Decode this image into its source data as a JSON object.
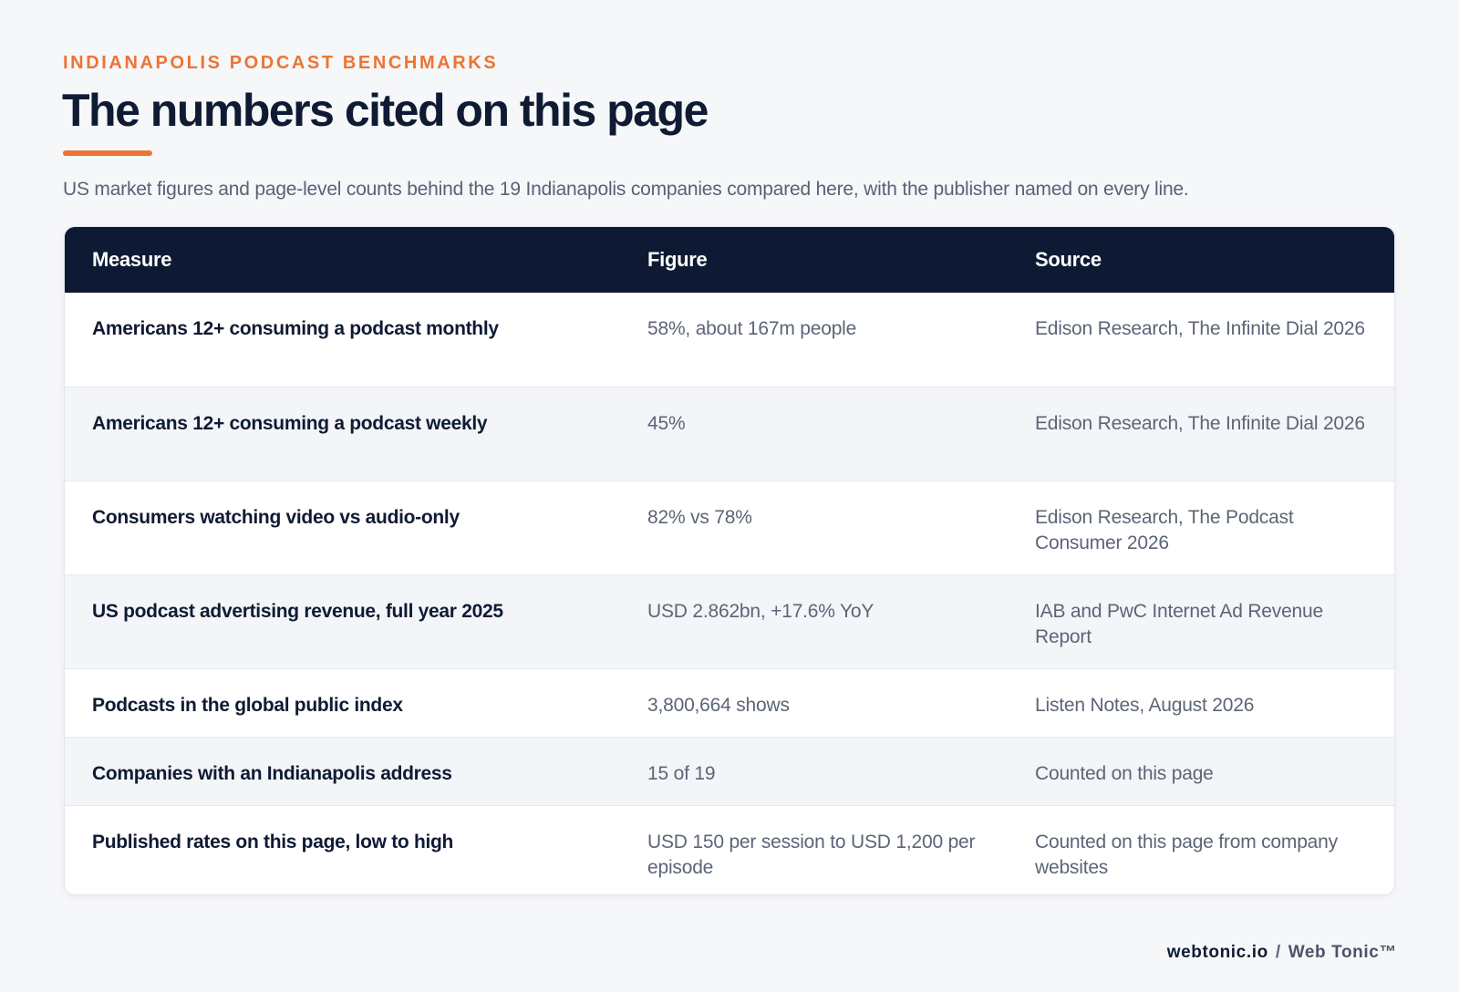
{
  "header": {
    "eyebrow": "INDIANAPOLIS PODCAST BENCHMARKS",
    "title": "The numbers cited on this page",
    "subtitle": "US market figures and page-level counts behind the 19 Indianapolis companies compared here, with the publisher named on every line."
  },
  "table": {
    "columns": [
      "Measure",
      "Figure",
      "Source"
    ],
    "rows": [
      {
        "measure": "Americans 12+ consuming a podcast monthly",
        "figure": "58%, about 167m people",
        "source": "Edison Research, The Infinite Dial 2026"
      },
      {
        "measure": "Americans 12+ consuming a podcast weekly",
        "figure": "45%",
        "source": "Edison Research, The Infinite Dial 2026"
      },
      {
        "measure": "Consumers watching video vs audio-only",
        "figure": "82% vs 78%",
        "source": "Edison Research, The Podcast Consumer 2026"
      },
      {
        "measure": "US podcast advertising revenue, full year 2025",
        "figure": "USD 2.862bn, +17.6% YoY",
        "source": "IAB and PwC Internet Ad Revenue Report"
      },
      {
        "measure": "Podcasts in the global public index",
        "figure": "3,800,664 shows",
        "source": "Listen Notes, August 2026"
      },
      {
        "measure": "Companies with an Indianapolis address",
        "figure": "15 of 19",
        "source": "Counted on this page"
      },
      {
        "measure": "Published rates on this page, low to high",
        "figure": "USD 150 per session to USD 1,200 per episode",
        "source": "Counted on this page from company websites"
      }
    ]
  },
  "footer": {
    "site": "webtonic.io",
    "separator": "/",
    "brand": "Web Tonic™"
  },
  "colors": {
    "accent": "#ee7433",
    "header_bg": "#0e1a33",
    "page_bg": "#f6f7f9"
  }
}
